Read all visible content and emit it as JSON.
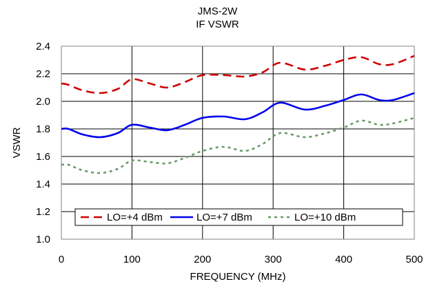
{
  "chart_data": {
    "type": "line",
    "title": "JMS-2W",
    "subtitle": "IF VSWR",
    "xlabel": "FREQUENCY (MHz)",
    "ylabel": "VSWR",
    "xlim": [
      0,
      500
    ],
    "ylim": [
      1.0,
      2.4
    ],
    "xticks": [
      0,
      100,
      200,
      300,
      400,
      500
    ],
    "xtick_labels": [
      "0",
      "100",
      "200",
      "300",
      "400",
      "500"
    ],
    "yticks": [
      1.0,
      1.2,
      1.4,
      1.6,
      1.8,
      2.0,
      2.2,
      2.4
    ],
    "ytick_labels": [
      "1.0",
      "1.2",
      "1.4",
      "1.6",
      "1.8",
      "2.0",
      "2.2",
      "2.4"
    ],
    "grid": true,
    "legend_position": "bottom-center",
    "series": [
      {
        "name": "LO=+4 dBm",
        "color": "#cc0000",
        "dash": "dashed",
        "x": [
          0,
          10,
          30,
          55,
          80,
          100,
          125,
          150,
          175,
          200,
          230,
          260,
          285,
          310,
          345,
          375,
          400,
          425,
          450,
          470,
          500
        ],
        "y": [
          2.13,
          2.12,
          2.08,
          2.06,
          2.09,
          2.16,
          2.13,
          2.1,
          2.14,
          2.19,
          2.19,
          2.18,
          2.21,
          2.28,
          2.23,
          2.26,
          2.3,
          2.32,
          2.27,
          2.27,
          2.33
        ]
      },
      {
        "name": "LO=+7 dBm",
        "color": "#0000ee",
        "dash": "solid",
        "x": [
          0,
          10,
          30,
          55,
          80,
          100,
          125,
          150,
          175,
          200,
          230,
          260,
          285,
          310,
          345,
          375,
          400,
          425,
          450,
          470,
          500
        ],
        "y": [
          1.8,
          1.8,
          1.76,
          1.74,
          1.77,
          1.83,
          1.81,
          1.79,
          1.83,
          1.88,
          1.89,
          1.87,
          1.92,
          1.99,
          1.94,
          1.97,
          2.01,
          2.05,
          2.01,
          2.01,
          2.06
        ]
      },
      {
        "name": "LO=+10 dBm",
        "color": "#669966",
        "dash": "dotted",
        "x": [
          0,
          10,
          30,
          55,
          80,
          100,
          125,
          150,
          175,
          200,
          230,
          260,
          285,
          310,
          345,
          375,
          400,
          425,
          450,
          470,
          500
        ],
        "y": [
          1.54,
          1.54,
          1.5,
          1.48,
          1.51,
          1.57,
          1.56,
          1.55,
          1.59,
          1.64,
          1.67,
          1.64,
          1.69,
          1.77,
          1.74,
          1.77,
          1.81,
          1.86,
          1.83,
          1.84,
          1.88
        ]
      }
    ]
  }
}
